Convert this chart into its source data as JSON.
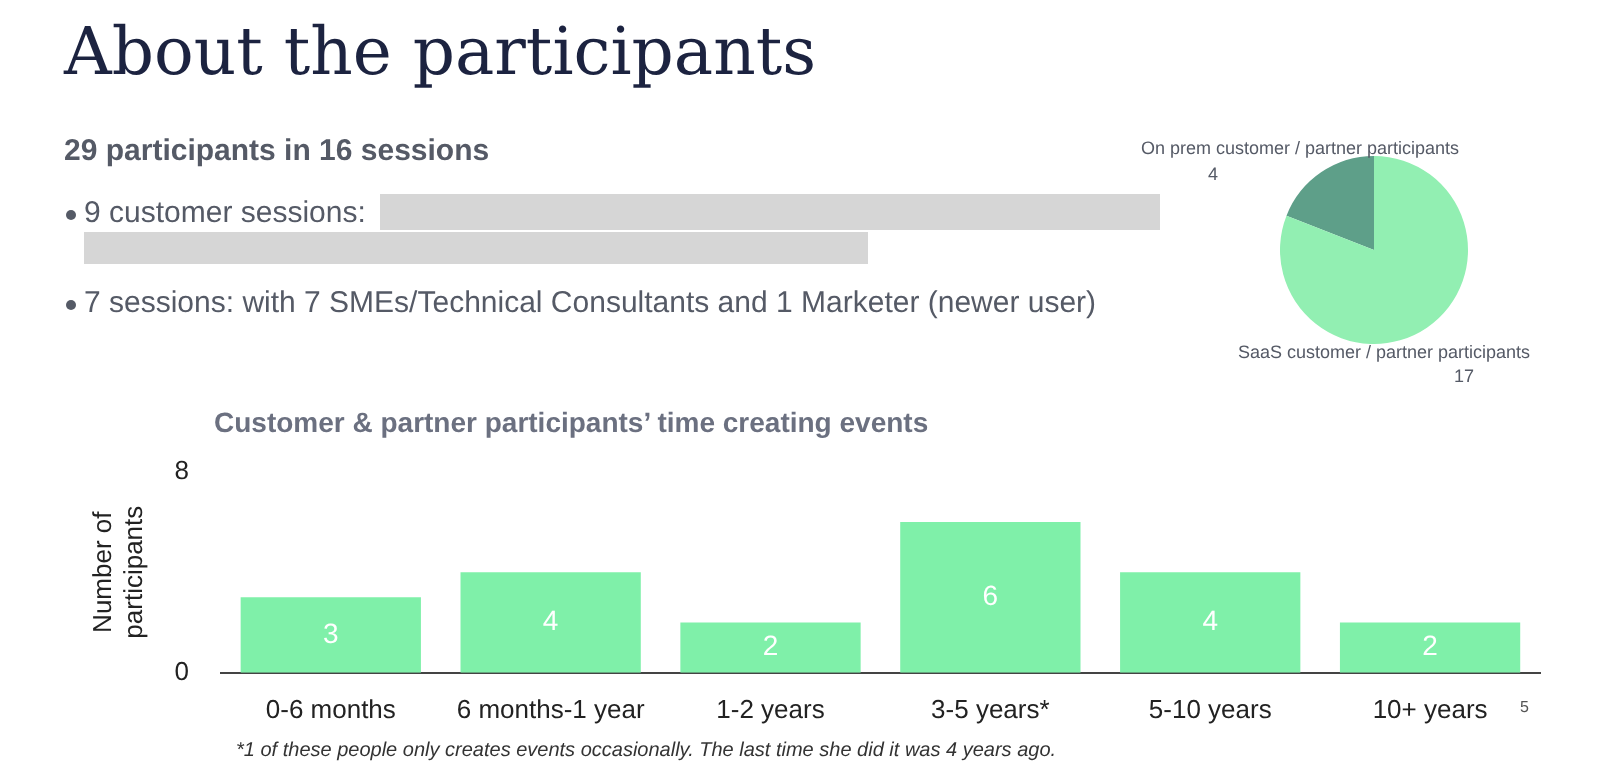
{
  "chart_data": [
    {
      "type": "other",
      "title": "About the participants",
      "subtitle": "29 participants in 16 sessions",
      "annotations": [
        "9 customer sessions:",
        "7 sessions: with 7 SMEs/Technical Consultants and 1 Marketer (newer user)"
      ]
    },
    {
      "type": "pie",
      "categories": [
        "On prem customer / partner participants",
        "SaaS customer / partner participants"
      ],
      "values": [
        4,
        17
      ],
      "colors": [
        "#5e9f89",
        "#92efb2"
      ],
      "data_labels": true
    },
    {
      "type": "bar",
      "title": "Customer & partner participants’ time creating events",
      "ylabel": "Number of participants",
      "categories": [
        "0-6 months",
        "6 months-1 year",
        "1-2 years",
        "3-5 years*",
        "5-10 years",
        "10+ years"
      ],
      "values": [
        3,
        4,
        2,
        6,
        4,
        2
      ],
      "color": "#7ff0a9",
      "ylim": [
        0,
        8
      ],
      "yticks": [
        0,
        8
      ],
      "grid": false,
      "data_labels": true,
      "annotations": [
        "*1 of these people only creates events occasionally. The last time she did it was 4 years ago.",
        "5"
      ]
    }
  ]
}
